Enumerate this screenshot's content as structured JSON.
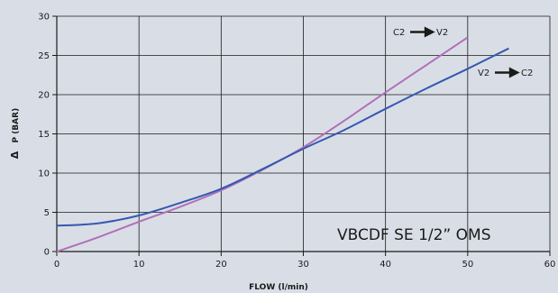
{
  "chart_data": {
    "type": "line",
    "title": "VBCDF SE 1/2” OMS",
    "xlabel": "FLOW  (l/min)",
    "ylabel": "P (BAR)",
    "ylabel_symbol": "Δ",
    "xlim": [
      0,
      60
    ],
    "ylim": [
      0,
      30
    ],
    "xticks": [
      0,
      10,
      20,
      30,
      40,
      50,
      60
    ],
    "yticks": [
      0,
      5,
      10,
      15,
      20,
      25,
      30
    ],
    "grid": true,
    "colors": {
      "background": "#d9dee6",
      "grid": "#1a1a1a"
    },
    "series": [
      {
        "name": "C2 → V2",
        "label_from": "C2",
        "label_to": "V2",
        "color": "#b070b8",
        "x": [
          0,
          5,
          10,
          15,
          20,
          25,
          30,
          35,
          40,
          45,
          50
        ],
        "y": [
          0,
          1.8,
          3.8,
          5.7,
          7.8,
          10.4,
          13.3,
          16.7,
          20.3,
          23.8,
          27.3
        ]
      },
      {
        "name": "V2 → C2",
        "label_from": "V2",
        "label_to": "C2",
        "color": "#3558b0",
        "x": [
          0,
          5,
          10,
          15,
          20,
          25,
          30,
          35,
          40,
          45,
          50,
          55
        ],
        "y": [
          3.3,
          3.6,
          4.6,
          6.2,
          8.0,
          10.5,
          13.1,
          15.5,
          18.2,
          20.8,
          23.3,
          25.9
        ]
      }
    ]
  }
}
